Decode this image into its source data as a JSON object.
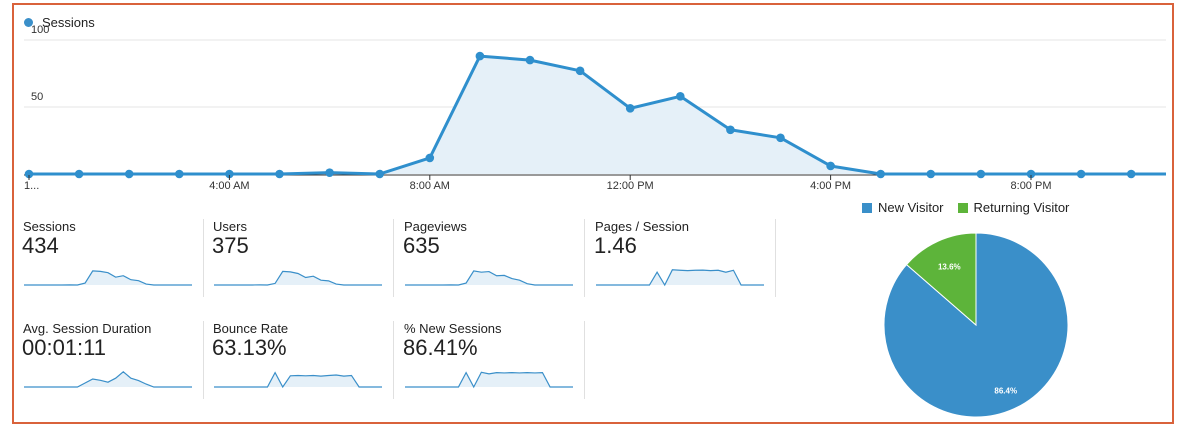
{
  "chart_data": {
    "type": "area",
    "legend": "Sessions",
    "x_labels": [
      "1...",
      "4:00 AM",
      "8:00 AM",
      "12:00 PM",
      "4:00 PM",
      "8:00 PM"
    ],
    "y_ticks": [
      "100",
      "50"
    ],
    "ylim": [
      0,
      100
    ],
    "values": [
      0,
      0,
      0,
      0,
      0,
      0,
      1,
      0,
      12,
      88,
      85,
      77,
      49,
      58,
      33,
      27,
      6,
      0,
      0,
      0,
      0,
      0,
      0
    ],
    "colors": {
      "line": "#2f8fcd",
      "fill": "#e5f0f8"
    }
  },
  "metrics": [
    {
      "label": "Sessions",
      "value": "434",
      "spark": [
        0,
        0,
        0,
        0,
        0,
        0,
        1,
        0,
        12,
        88,
        85,
        77,
        49,
        58,
        33,
        27,
        6,
        0,
        0,
        0,
        0,
        0,
        0
      ]
    },
    {
      "label": "Users",
      "value": "375",
      "spark": [
        0,
        0,
        0,
        0,
        0,
        0,
        1,
        0,
        10,
        85,
        82,
        72,
        47,
        55,
        30,
        26,
        6,
        0,
        0,
        0,
        0,
        0,
        0
      ]
    },
    {
      "label": "Pageviews",
      "value": "635",
      "spark": [
        0,
        0,
        0,
        0,
        0,
        0,
        1,
        0,
        12,
        88,
        80,
        84,
        58,
        60,
        40,
        30,
        8,
        0,
        0,
        0,
        0,
        0,
        0
      ]
    },
    {
      "label": "Pages / Session",
      "value": "1.46",
      "spark": [
        0,
        0,
        0,
        0,
        0,
        0,
        0,
        0,
        80,
        0,
        95,
        92,
        90,
        92,
        93,
        90,
        92,
        80,
        92,
        0,
        0,
        0,
        0
      ]
    },
    {
      "label": "Avg. Session Duration",
      "value": "00:01:11",
      "spark": [
        0,
        0,
        0,
        0,
        0,
        0,
        0,
        0,
        25,
        50,
        42,
        30,
        55,
        95,
        55,
        40,
        18,
        0,
        0,
        0,
        0,
        0,
        0
      ]
    },
    {
      "label": "Bounce Rate",
      "value": "63.13%",
      "spark": [
        0,
        0,
        0,
        0,
        0,
        0,
        0,
        0,
        90,
        0,
        70,
        72,
        70,
        72,
        68,
        72,
        75,
        68,
        72,
        0,
        0,
        0,
        0
      ]
    },
    {
      "label": "% New Sessions",
      "value": "86.41%",
      "spark": [
        0,
        0,
        0,
        0,
        0,
        0,
        0,
        0,
        90,
        0,
        92,
        82,
        90,
        88,
        90,
        88,
        90,
        88,
        90,
        0,
        0,
        0,
        0
      ]
    }
  ],
  "pie": {
    "legend": [
      {
        "label": "New Visitor",
        "color": "#3a8fc9"
      },
      {
        "label": "Returning Visitor",
        "color": "#5db43a"
      }
    ],
    "slices": [
      {
        "label": "New Visitor",
        "value": 86.4,
        "text": "86.4%",
        "color": "#3a8fc9"
      },
      {
        "label": "Returning Visitor",
        "value": 13.6,
        "text": "13.6%",
        "color": "#5db43a"
      }
    ]
  }
}
